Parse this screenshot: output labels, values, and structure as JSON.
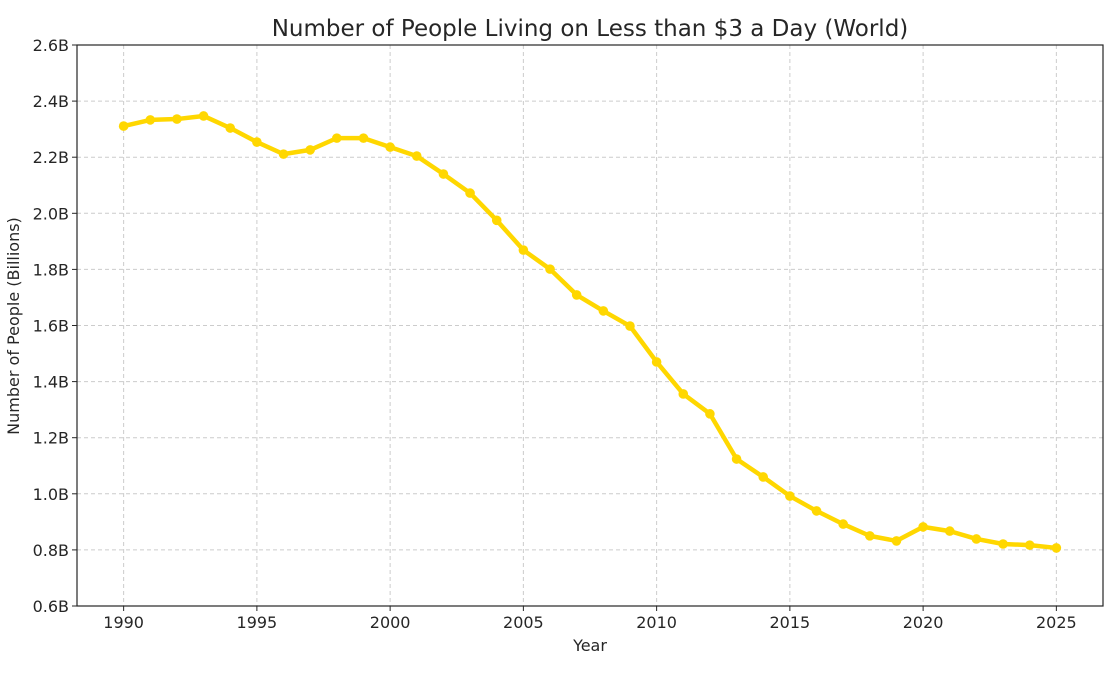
{
  "chart_data": {
    "type": "line",
    "title": "Number of People Living on Less than $3 a Day (World)",
    "xlabel": "Year",
    "ylabel": "Number of People (Billions)",
    "xlim": [
      1988.25,
      2026.75
    ],
    "ylim": [
      0.6,
      2.6
    ],
    "xticks": [
      1990,
      1995,
      2000,
      2005,
      2010,
      2015,
      2020,
      2025
    ],
    "yticks": [
      0.6,
      0.8,
      1.0,
      1.2,
      1.4,
      1.6,
      1.8,
      2.0,
      2.2,
      2.4,
      2.6
    ],
    "ytick_labels": [
      "0.6B",
      "0.8B",
      "1.0B",
      "1.2B",
      "1.4B",
      "1.6B",
      "1.8B",
      "2.0B",
      "2.2B",
      "2.4B",
      "2.6B"
    ],
    "grid": true,
    "color": "#FFD700",
    "x": [
      1990,
      1991,
      1992,
      1993,
      1994,
      1995,
      1996,
      1997,
      1998,
      1999,
      2000,
      2001,
      2002,
      2003,
      2004,
      2005,
      2006,
      2007,
      2008,
      2009,
      2010,
      2011,
      2012,
      2013,
      2014,
      2015,
      2016,
      2017,
      2018,
      2019,
      2020,
      2021,
      2022,
      2023,
      2024,
      2025
    ],
    "values": [
      2.311,
      2.333,
      2.336,
      2.347,
      2.304,
      2.254,
      2.211,
      2.226,
      2.268,
      2.268,
      2.236,
      2.204,
      2.14,
      2.072,
      1.975,
      1.869,
      1.801,
      1.709,
      1.652,
      1.598,
      1.47,
      1.356,
      1.285,
      1.124,
      1.06,
      0.992,
      0.939,
      0.892,
      0.85,
      0.832,
      0.882,
      0.867,
      0.839,
      0.821,
      0.817,
      0.807
    ]
  }
}
